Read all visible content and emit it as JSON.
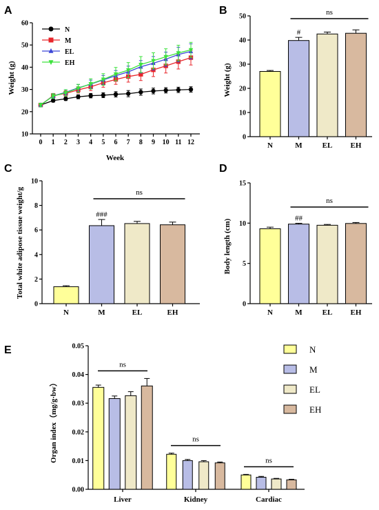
{
  "panels": {
    "A": {
      "letter": "A",
      "chart_data": {
        "type": "line",
        "xlabel": "Week",
        "ylabel": "Weight (g)",
        "x": [
          0,
          1,
          2,
          3,
          4,
          5,
          6,
          7,
          8,
          9,
          10,
          11,
          12
        ],
        "xlim": [
          0,
          12
        ],
        "ylim": [
          10,
          60
        ],
        "yticks": [
          10,
          20,
          30,
          40,
          50,
          60
        ],
        "legend_position": "top-left",
        "series": [
          {
            "name": "N",
            "color": "#000000",
            "marker": "circle",
            "values": [
              23,
              25,
              25.8,
              26.7,
              27.2,
              27.4,
              27.8,
              28.1,
              28.8,
              29.3,
              29.6,
              29.8,
              30.0
            ],
            "errors": [
              0.6,
              0.7,
              0.8,
              0.9,
              1.0,
              1.1,
              1.2,
              1.4,
              1.4,
              1.3,
              1.2,
              1.2,
              1.2
            ]
          },
          {
            "name": "M",
            "color": "#e8262b",
            "marker": "square",
            "values": [
              23,
              27.2,
              28.2,
              29.8,
              31.2,
              33,
              34.5,
              35.8,
              36.8,
              38.8,
              40.6,
              42.5,
              44.3
            ],
            "errors": [
              0.8,
              1.0,
              1.2,
              1.4,
              1.7,
              2.0,
              2.2,
              2.5,
              2.8,
              3.0,
              3.2,
              3.3,
              3.3
            ]
          },
          {
            "name": "EL",
            "color": "#3b46d6",
            "marker": "triangle-up",
            "values": [
              23,
              27.1,
              28.7,
              30.7,
              32.4,
              34.3,
              36.2,
              37.9,
              40.2,
              41.8,
              43.6,
              45.7,
              47.1
            ],
            "errors": [
              0.8,
              1.0,
              1.2,
              1.5,
              1.8,
              2.0,
              2.3,
              2.6,
              2.8,
              3.0,
              3.2,
              3.3,
              3.4
            ]
          },
          {
            "name": "EH",
            "color": "#3de23d",
            "marker": "triangle-down",
            "values": [
              23,
              27,
              28.5,
              30.5,
              32.5,
              34.5,
              36.9,
              38.7,
              41.2,
              42.9,
              44.7,
              46.4,
              47.8
            ],
            "errors": [
              0.8,
              1.1,
              1.4,
              1.8,
              2.3,
              2.6,
              3.0,
              3.4,
              3.6,
              3.6,
              3.6,
              3.5,
              3.4
            ]
          }
        ]
      }
    },
    "B": {
      "letter": "B",
      "chart_data": {
        "type": "bar",
        "ylabel": "Weight (g)",
        "categories": [
          "N",
          "M",
          "EL",
          "EH"
        ],
        "values": [
          27,
          39.8,
          42.5,
          42.8
        ],
        "errors": [
          0.4,
          1.3,
          0.8,
          1.4
        ],
        "ylim": [
          0,
          50
        ],
        "yticks": [
          0,
          10,
          20,
          30,
          40,
          50
        ],
        "colors": [
          "#ffff99",
          "#b8bde6",
          "#efe9c8",
          "#d8b99f"
        ],
        "bar_labels": [
          "",
          "#",
          "",
          ""
        ],
        "bracket_label": "ns"
      }
    },
    "C": {
      "letter": "C",
      "chart_data": {
        "type": "bar",
        "ylabel": "Total white adipose tissue weight/g",
        "categories": [
          "N",
          "M",
          "EL",
          "EH"
        ],
        "values": [
          1.38,
          6.35,
          6.52,
          6.42
        ],
        "errors": [
          0.08,
          0.5,
          0.18,
          0.22
        ],
        "ylim": [
          0,
          10
        ],
        "yticks": [
          0,
          2,
          4,
          6,
          8,
          10
        ],
        "colors": [
          "#ffff99",
          "#b8bde6",
          "#efe9c8",
          "#d8b99f"
        ],
        "bar_labels": [
          "",
          "###",
          "",
          ""
        ],
        "bracket_label": "ns"
      }
    },
    "D": {
      "letter": "D",
      "chart_data": {
        "type": "bar",
        "ylabel": "Body length (cm)",
        "categories": [
          "N",
          "M",
          "EL",
          "EH"
        ],
        "values": [
          9.3,
          9.88,
          9.74,
          9.96
        ],
        "errors": [
          0.2,
          0.1,
          0.1,
          0.12
        ],
        "ylim": [
          0,
          15
        ],
        "yticks": [
          0,
          5,
          10,
          15
        ],
        "colors": [
          "#ffff99",
          "#b8bde6",
          "#efe9c8",
          "#d8b99f"
        ],
        "bar_labels": [
          "",
          "##",
          "",
          ""
        ],
        "bracket_label": "ns"
      }
    },
    "E": {
      "letter": "E",
      "chart_data": {
        "type": "bar",
        "ylabel": "Organ index（mg/g·bw）",
        "categories": [
          "Liver",
          "Kidney",
          "Cardiac"
        ],
        "ylim": [
          0,
          0.05
        ],
        "yticks": [
          "0.00",
          "0.01",
          "0.02",
          "0.03",
          "0.04",
          "0.05"
        ],
        "legend_position": "top-right",
        "series": [
          {
            "name": "N",
            "color": "#ffff99",
            "values": [
              0.0355,
              0.0122,
              0.005
            ],
            "errors": [
              0.0008,
              0.0004,
              0.0002
            ]
          },
          {
            "name": "M",
            "color": "#b8bde6",
            "values": [
              0.0316,
              0.01,
              0.0042
            ],
            "errors": [
              0.0009,
              0.0004,
              0.0003
            ]
          },
          {
            "name": "EL",
            "color": "#efe9c8",
            "values": [
              0.0326,
              0.0096,
              0.0036
            ],
            "errors": [
              0.0014,
              0.0004,
              0.0002
            ]
          },
          {
            "name": "EH",
            "color": "#d8b99f",
            "values": [
              0.036,
              0.0092,
              0.0033
            ],
            "errors": [
              0.0026,
              0.0003,
              0.0002
            ]
          }
        ],
        "bracket_labels": [
          "ns",
          "ns",
          "ns"
        ]
      }
    }
  }
}
